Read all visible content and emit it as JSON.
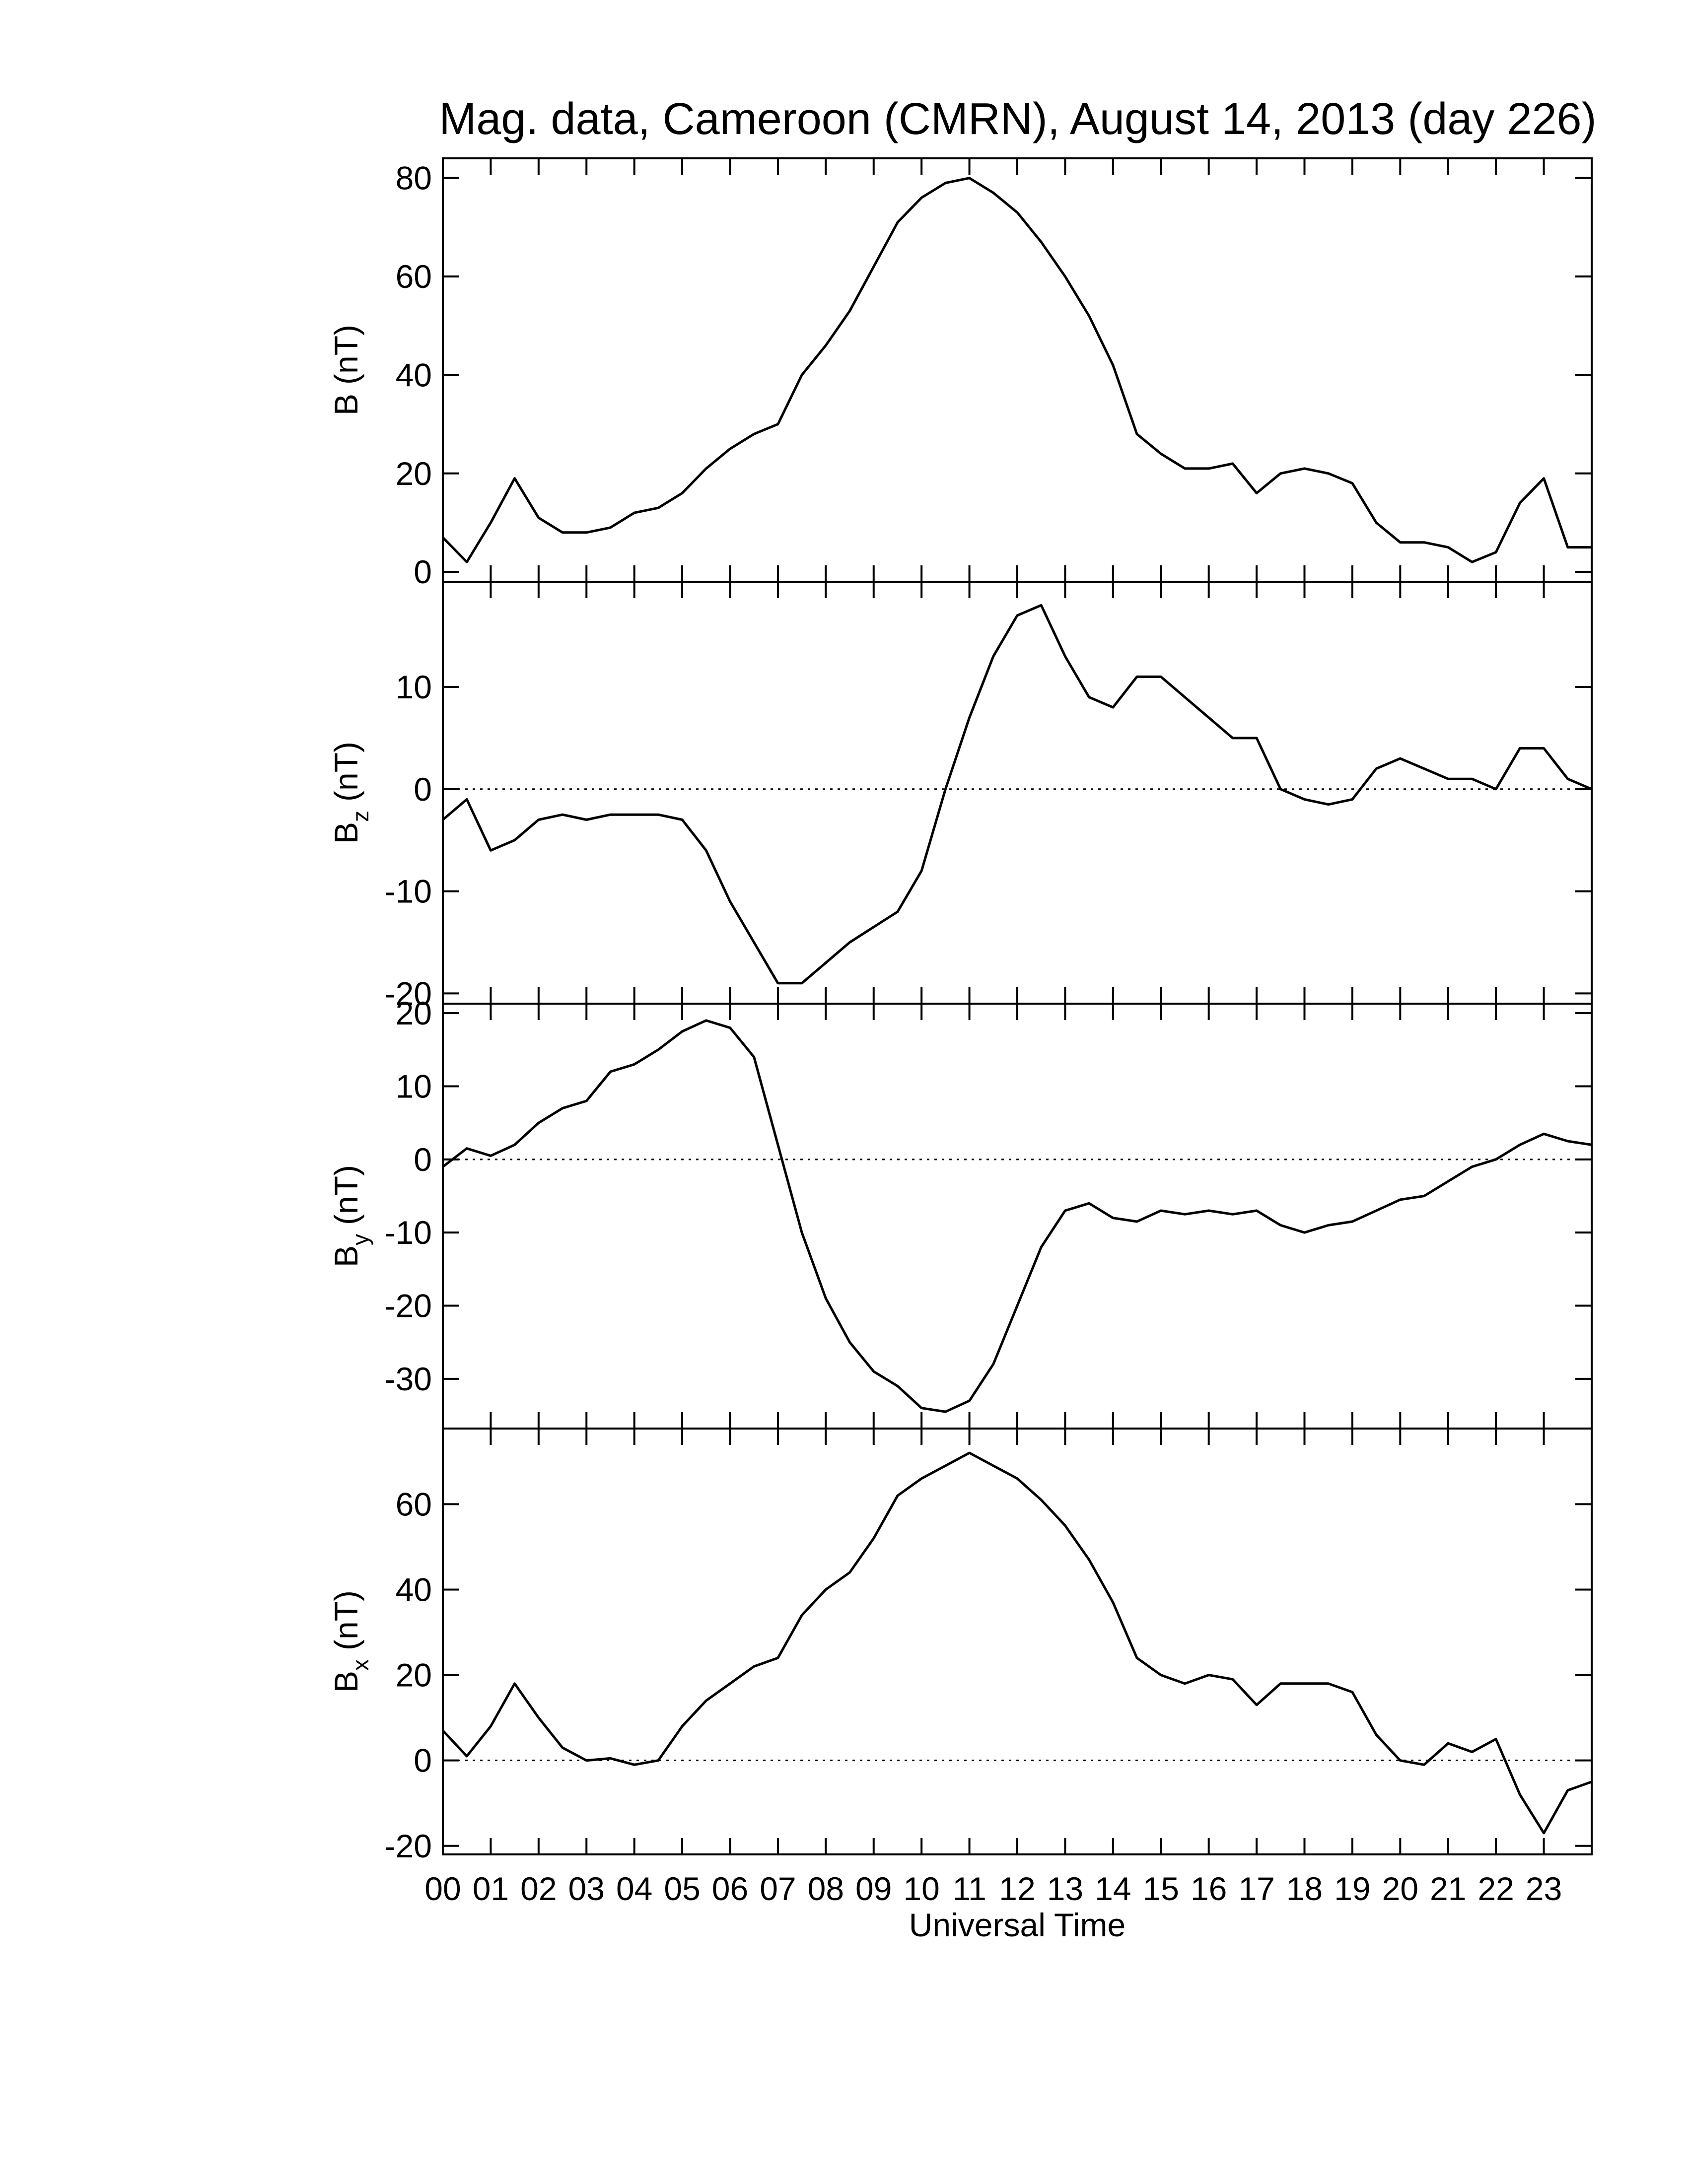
{
  "chart_data": [
    {
      "type": "line",
      "title": "Mag. data, Cameroon (CMRN), August 14, 2013 (day 226)",
      "ylabel": {
        "main": "B",
        "unit": "(nT)"
      },
      "color": "#000000",
      "zero_line": false,
      "xlim": [
        0,
        24
      ],
      "ylim": [
        -2,
        84
      ],
      "yticks": [
        0,
        20,
        40,
        60,
        80
      ],
      "x": [
        0,
        0.5,
        1,
        1.5,
        2,
        2.5,
        3,
        3.5,
        4,
        4.5,
        5,
        5.5,
        6,
        6.5,
        7,
        7.5,
        8,
        8.5,
        9,
        9.5,
        10,
        10.5,
        11,
        11.5,
        12,
        12.5,
        13,
        13.5,
        14,
        14.5,
        15,
        15.5,
        16,
        16.5,
        17,
        17.5,
        18,
        18.5,
        19,
        19.5,
        20,
        20.5,
        21,
        21.5,
        22,
        22.5,
        23,
        23.5,
        24
      ],
      "values": [
        7,
        2,
        10,
        19,
        11,
        8,
        8,
        9,
        12,
        13,
        16,
        21,
        25,
        28,
        30,
        40,
        46,
        53,
        62,
        71,
        76,
        79,
        80,
        77,
        73,
        67,
        60,
        52,
        42,
        28,
        24,
        21,
        21,
        22,
        16,
        20,
        21,
        20,
        18,
        10,
        6,
        6,
        5,
        2,
        4,
        14,
        19,
        5,
        5
      ]
    },
    {
      "type": "line",
      "ylabel": {
        "main": "B",
        "sub": "z",
        "unit": "(nT)"
      },
      "color": "#000000",
      "zero_line": true,
      "xlim": [
        0,
        24
      ],
      "ylim": [
        -21,
        20.3
      ],
      "yticks": [
        -20,
        -10,
        0,
        10
      ],
      "x": [
        0,
        0.5,
        1,
        1.5,
        2,
        2.5,
        3,
        3.5,
        4,
        4.5,
        5,
        5.5,
        6,
        6.5,
        7,
        7.5,
        8,
        8.5,
        9,
        9.5,
        10,
        10.5,
        11,
        11.5,
        12,
        12.5,
        13,
        13.5,
        14,
        14.5,
        15,
        15.5,
        16,
        16.5,
        17,
        17.5,
        18,
        18.5,
        19,
        19.5,
        20,
        20.5,
        21,
        21.5,
        22,
        22.5,
        23,
        23.5,
        24
      ],
      "values": [
        -3,
        -1,
        -6,
        -5,
        -3,
        -2.5,
        -3,
        -2.5,
        -2.5,
        -2.5,
        -3,
        -6,
        -11,
        -15,
        -19,
        -19,
        -17,
        -15,
        -13.5,
        -12,
        -8,
        0,
        7,
        13,
        17,
        18,
        13,
        9,
        8,
        11,
        11,
        9,
        7,
        5,
        5,
        0,
        -1,
        -1.5,
        -1,
        2,
        3,
        2,
        1,
        1,
        0,
        4,
        4,
        1,
        0
      ]
    },
    {
      "type": "line",
      "ylabel": {
        "main": "B",
        "sub": "y",
        "unit": "(nT)"
      },
      "color": "#000000",
      "zero_line": true,
      "xlim": [
        0,
        24
      ],
      "ylim": [
        -36.8,
        21.3
      ],
      "yticks": [
        -30,
        -20,
        -10,
        0,
        10,
        20
      ],
      "x": [
        0,
        0.5,
        1,
        1.5,
        2,
        2.5,
        3,
        3.5,
        4,
        4.5,
        5,
        5.5,
        6,
        6.5,
        7,
        7.5,
        8,
        8.5,
        9,
        9.5,
        10,
        10.5,
        11,
        11.5,
        12,
        12.5,
        13,
        13.5,
        14,
        14.5,
        15,
        15.5,
        16,
        16.5,
        17,
        17.5,
        18,
        18.5,
        19,
        19.5,
        20,
        20.5,
        21,
        21.5,
        22,
        22.5,
        23,
        23.5,
        24
      ],
      "values": [
        -1,
        1.5,
        0.5,
        2,
        5,
        7,
        8,
        12,
        13,
        15,
        17.5,
        19,
        18,
        14,
        2,
        -10,
        -19,
        -25,
        -29,
        -31,
        -34,
        -34.5,
        -33,
        -28,
        -20,
        -12,
        -7,
        -6,
        -8,
        -8.5,
        -7,
        -7.5,
        -7,
        -7.5,
        -7,
        -9,
        -10,
        -9,
        -8.5,
        -7,
        -5.5,
        -5,
        -3,
        -1,
        0,
        2,
        3.5,
        2.5,
        2
      ]
    },
    {
      "type": "line",
      "ylabel": {
        "main": "B",
        "sub": "x",
        "unit": "(nT)"
      },
      "color": "#000000",
      "zero_line": true,
      "xlim": [
        0,
        24
      ],
      "ylim": [
        -22,
        77.7
      ],
      "yticks": [
        -20,
        0,
        20,
        40,
        60
      ],
      "xlabel": "Universal Time",
      "xticks": [
        {
          "value": 0,
          "label": "00"
        },
        {
          "value": 1,
          "label": "01"
        },
        {
          "value": 2,
          "label": "02"
        },
        {
          "value": 3,
          "label": "03"
        },
        {
          "value": 4,
          "label": "04"
        },
        {
          "value": 5,
          "label": "05"
        },
        {
          "value": 6,
          "label": "06"
        },
        {
          "value": 7,
          "label": "07"
        },
        {
          "value": 8,
          "label": "08"
        },
        {
          "value": 9,
          "label": "09"
        },
        {
          "value": 10,
          "label": "10"
        },
        {
          "value": 11,
          "label": "11"
        },
        {
          "value": 12,
          "label": "12"
        },
        {
          "value": 13,
          "label": "13"
        },
        {
          "value": 14,
          "label": "14"
        },
        {
          "value": 15,
          "label": "15"
        },
        {
          "value": 16,
          "label": "16"
        },
        {
          "value": 17,
          "label": "17"
        },
        {
          "value": 18,
          "label": "18"
        },
        {
          "value": 19,
          "label": "19"
        },
        {
          "value": 20,
          "label": "20"
        },
        {
          "value": 21,
          "label": "21"
        },
        {
          "value": 22,
          "label": "22"
        },
        {
          "value": 23,
          "label": "23"
        }
      ],
      "x": [
        0,
        0.5,
        1,
        1.5,
        2,
        2.5,
        3,
        3.5,
        4,
        4.5,
        5,
        5.5,
        6,
        6.5,
        7,
        7.5,
        8,
        8.5,
        9,
        9.5,
        10,
        10.5,
        11,
        11.5,
        12,
        12.5,
        13,
        13.5,
        14,
        14.5,
        15,
        15.5,
        16,
        16.5,
        17,
        17.5,
        18,
        18.5,
        19,
        19.5,
        20,
        20.5,
        21,
        21.5,
        22,
        22.5,
        23,
        23.5,
        24
      ],
      "values": [
        7,
        1,
        8,
        18,
        10,
        3,
        0,
        0.5,
        -1,
        0,
        8,
        14,
        18,
        22,
        24,
        34,
        40,
        44,
        52,
        62,
        66,
        69,
        72,
        69,
        66,
        61,
        55,
        47,
        37,
        24,
        20,
        18,
        20,
        19,
        13,
        18,
        18,
        18,
        16,
        6,
        0,
        -1,
        4,
        2,
        5,
        -8,
        -17,
        -7,
        -5
      ]
    }
  ]
}
